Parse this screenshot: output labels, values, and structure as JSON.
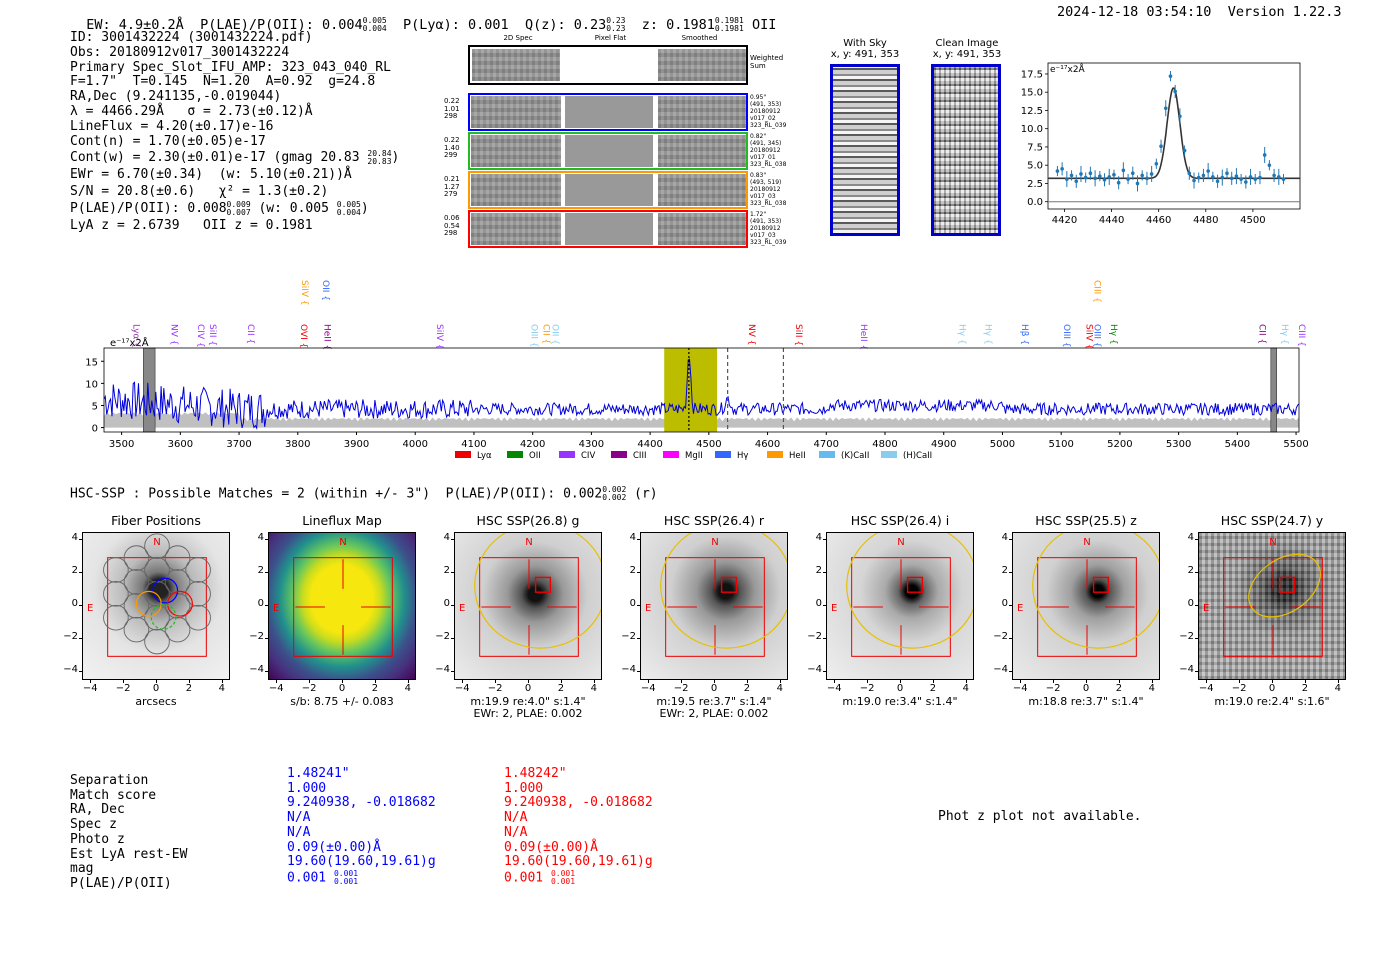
{
  "header": {
    "ew": "EW: 4.9±0.2Å",
    "plae_label": "P(LAE)/P(OII): 0.004",
    "plae_hi": "0.005",
    "plae_lo": "0.004",
    "plya": "P(Lyα): 0.001",
    "qz_label": "Q(z): 0.23",
    "qz_hi": "0.23",
    "qz_lo": "0.23",
    "z_label": "z: 0.1981",
    "z_hi": "0.1981",
    "z_lo": "0.1981",
    "z_line": "OII",
    "timestamp": "2024-12-18 03:54:10",
    "version": "Version 1.22.3"
  },
  "info": {
    "id": "ID: 3001432224 (3001432224.pdf)",
    "obs": "Obs: 20180912v017_3001432224",
    "primary": "Primary Spec_Slot_IFU_AMP: 323_043_040_RL",
    "fline": "F=1.7\"  T=0.145  N=1.20  A=0.92  g=24.8",
    "radec": "RA,Dec (9.241135,-0.019044)",
    "lambda": "λ = 4466.29Å   σ = 2.73(±0.12)Å",
    "lineflux": "LineFlux = 4.20(±0.17)e-16",
    "contn": "Cont(n) = 1.70(±0.05)e-17",
    "contw": "Cont(w) = 2.30(±0.01)e-17 (gmag 20.83",
    "contw_hi": "20.84",
    "contw_lo": "20.83",
    "ewr": "EWr = 6.70(±0.34)  (w: 5.10(±0.21))Å",
    "sn": "S/N = 20.8(±0.6)   χ² = 1.3(±0.2)",
    "plae": "P(LAE)/P(OII): 0.008",
    "plae_hi": "0.009",
    "plae_lo": "0.007",
    "plae_w": "(w: 0.005",
    "plae_w_hi": "0.005",
    "plae_w_lo": "0.004",
    "lyaz": "LyA z = 2.6739   OII z = 0.1981"
  },
  "cutouts": {
    "col_2d": "2D Spec",
    "col_flat": "Pixel Flat",
    "col_smooth": "Smoothed",
    "weighted_sum": "Weighted Sum",
    "rows": [
      {
        "l1": "0.22",
        "l2": "1.01",
        "l3": "298",
        "r": [
          "0.95\"",
          "(491, 353)",
          "20180912",
          "v017_02",
          "323_RL_039"
        ],
        "color": "#0000ff"
      },
      {
        "l1": "0.22",
        "l2": "1.40",
        "l3": "299",
        "r": [
          "0.82\"",
          "(491, 345)",
          "20180912",
          "v017_01",
          "323_RL_038"
        ],
        "color": "#22bb22"
      },
      {
        "l1": "0.21",
        "l2": "1.27",
        "l3": "279",
        "r": [
          "0.83\"",
          "(493, 519)",
          "20180912",
          "v017_03",
          "323_RL_038"
        ],
        "color": "#ff9900"
      },
      {
        "l1": "0.06",
        "l2": "0.54",
        "l3": "298",
        "r": [
          "1.72\"",
          "(491, 353)",
          "20180912",
          "v017_03",
          "323_RL_039"
        ],
        "color": "#ff0000"
      }
    ]
  },
  "sky": {
    "with_sky": "With Sky",
    "with_sky_xy": "x, y: 491, 353",
    "clean": "Clean Image",
    "clean_xy": "x, y: 491, 353"
  },
  "zoom_chart": {
    "unit": "e⁻¹⁷x2Å",
    "x_ticks": [
      "4420",
      "4440",
      "4460",
      "4480",
      "4500"
    ],
    "y_ticks": [
      "0.0",
      "2.5",
      "5.0",
      "7.5",
      "10.0",
      "12.5",
      "15.0",
      "17.5"
    ]
  },
  "chart_data": [
    {
      "type": "scatter",
      "title": "",
      "xlabel": "",
      "ylabel": "e-17x2Å",
      "xlim": [
        4413,
        4520
      ],
      "ylim": [
        -1,
        19
      ],
      "fit_center": 4466.29,
      "fit_sigma": 2.73,
      "fit_amp": 12.4,
      "fit_base": 3.2,
      "x": [
        4417,
        4419,
        4421,
        4423,
        4425,
        4427,
        4429,
        4431,
        4433,
        4435,
        4437,
        4439,
        4441,
        4443,
        4445,
        4447,
        4449,
        4451,
        4453,
        4455,
        4457,
        4459,
        4461,
        4463,
        4465,
        4467,
        4469,
        4471,
        4473,
        4475,
        4477,
        4479,
        4481,
        4483,
        4485,
        4487,
        4489,
        4491,
        4493,
        4495,
        4497,
        4499,
        4501,
        4503,
        4505,
        4507,
        4509,
        4511,
        4513
      ],
      "y": [
        4.2,
        4.5,
        3.1,
        3.6,
        2.8,
        3.8,
        3.3,
        3.9,
        3.2,
        3.5,
        3.0,
        3.4,
        3.7,
        2.6,
        4.3,
        3.1,
        3.9,
        2.5,
        3.6,
        3.2,
        3.8,
        5.2,
        7.6,
        12.8,
        17.2,
        15.1,
        11.7,
        7.0,
        3.9,
        2.9,
        3.3,
        3.6,
        4.2,
        3.4,
        2.8,
        3.3,
        3.9,
        3.2,
        3.5,
        3.1,
        2.7,
        3.4,
        3.1,
        3.3,
        6.4,
        5.0,
        3.6,
        3.4,
        3.1
      ]
    },
    {
      "type": "line",
      "title": "",
      "ylabel": "e-17x2Å",
      "xlim": [
        3470,
        5505
      ],
      "ylim": [
        -1,
        18
      ],
      "x_ticks": [
        3500,
        3600,
        3700,
        3800,
        3900,
        4000,
        4100,
        4200,
        4300,
        4400,
        4500,
        4600,
        4700,
        4800,
        4900,
        5000,
        5100,
        5200,
        5300,
        5400,
        5500
      ],
      "y_ticks": [
        0,
        5,
        10,
        15
      ],
      "highlight_range": [
        4424,
        4514
      ],
      "dashed_lines": [
        4466,
        4532,
        4627
      ],
      "masked_ranges": [
        [
          3537,
          3557
        ],
        [
          5457,
          5467
        ]
      ],
      "legend": [
        "Lyα",
        "OII",
        "CIV",
        "CIII",
        "MgII",
        "Hγ",
        "HeII",
        "(K)CaII",
        "(H)CaII"
      ],
      "legend_colors": [
        "#ee0000",
        "#008800",
        "#9933ff",
        "#8b008b",
        "#ff00ff",
        "#3366ff",
        "#ff9900",
        "#66bbee",
        "#88ccee"
      ],
      "line_labels": [
        {
          "name": "Lyα",
          "w": 3515,
          "color": "#9933aa",
          "level": 0
        },
        {
          "name": "NV",
          "w": 3580,
          "color": "#9933ff",
          "level": 0
        },
        {
          "name": "CIV",
          "w": 3625,
          "color": "#9933ff",
          "level": 0
        },
        {
          "name": "SiII",
          "w": 3645,
          "color": "#9933ff",
          "level": 0
        },
        {
          "name": "CII",
          "w": 3710,
          "color": "#9933ff",
          "level": 0
        },
        {
          "name": "SiIV",
          "w": 3802,
          "color": "#ff9900",
          "level": 1
        },
        {
          "name": "OII",
          "w": 3838,
          "color": "#3366ff",
          "level": 1
        },
        {
          "name": "OVI",
          "w": 3800,
          "color": "#ee0000",
          "level": 0
        },
        {
          "name": "HeII",
          "w": 3840,
          "color": "#8b008b",
          "level": 0
        },
        {
          "name": "SiIV",
          "w": 4032,
          "color": "#9933ff",
          "level": 0
        },
        {
          "name": "OIII",
          "w": 4193,
          "color": "#88ccee",
          "level": 0
        },
        {
          "name": "CII",
          "w": 4213,
          "color": "#ff9900",
          "level": 0
        },
        {
          "name": "OII",
          "w": 4229,
          "color": "#88ccee",
          "level": 0
        },
        {
          "name": "NV",
          "w": 4563,
          "color": "#ee0000",
          "level": 0
        },
        {
          "name": "SiII",
          "w": 4643,
          "color": "#ee0000",
          "level": 0
        },
        {
          "name": "HeII",
          "w": 4754,
          "color": "#9933ff",
          "level": 0
        },
        {
          "name": "Hγ",
          "w": 4922,
          "color": "#88ccee",
          "level": 0
        },
        {
          "name": "Hγ",
          "w": 4966,
          "color": "#88ccee",
          "level": 0
        },
        {
          "name": "Hβ",
          "w": 5028,
          "color": "#3366ff",
          "level": 0
        },
        {
          "name": "OIII",
          "w": 5100,
          "color": "#3366ff",
          "level": 0
        },
        {
          "name": "SiIV",
          "w": 5138,
          "color": "#ee0000",
          "level": 0
        },
        {
          "name": "OIII",
          "w": 5152,
          "color": "#3366ff",
          "level": 0
        },
        {
          "name": "CIII",
          "w": 5152,
          "color": "#ff9900",
          "level": 1
        },
        {
          "name": "Hγ",
          "w": 5180,
          "color": "#008800",
          "level": 0
        },
        {
          "name": "CII",
          "w": 5433,
          "color": "#8b008b",
          "level": 0
        },
        {
          "name": "Hγ",
          "w": 5471,
          "color": "#88ccee",
          "level": 0
        },
        {
          "name": "CIII",
          "w": 5500,
          "color": "#9933ff",
          "level": 0
        }
      ]
    }
  ],
  "spectrum_unit": "e⁻¹⁷x2Å",
  "matches_header": "HSC-SSP : Possible Matches = 2 (within +/- 3\")  P(LAE)/P(OII): 0.002",
  "matches_hi": "0.002",
  "matches_lo": "0.002",
  "matches_band": "(r)",
  "panels": {
    "axis_ticks": [
      "−4",
      "−2",
      "0",
      "2",
      "4"
    ],
    "n_label": "N",
    "e_label": "E",
    "items": [
      {
        "title": "Fiber Positions",
        "cap1": "arcsecs",
        "cap2": ""
      },
      {
        "title": "Lineflux Map",
        "cap1": "s/b: 8.75 +/- 0.083",
        "cap2": ""
      },
      {
        "title": "HSC SSP(26.8) g",
        "cap1": "m:19.9  re:4.0\"  s:1.4\"",
        "cap2": "EWr: 2, PLAE: 0.002"
      },
      {
        "title": "HSC SSP(26.4) r",
        "cap1": "m:19.5  re:3.7\"  s:1.4\"",
        "cap2": "EWr: 2, PLAE: 0.002"
      },
      {
        "title": "HSC SSP(26.4) i",
        "cap1": "m:19.0  re:3.4\"  s:1.4\"",
        "cap2": ""
      },
      {
        "title": "HSC SSP(25.5) z",
        "cap1": "m:18.8  re:3.7\"  s:1.4\"",
        "cap2": ""
      },
      {
        "title": "HSC SSP(24.7) y",
        "cap1": "m:19.0  re:2.4\"  s:1.6\"",
        "cap2": ""
      }
    ]
  },
  "table": {
    "labels": [
      "Separation",
      "Match score",
      "RA, Dec",
      "Spec z",
      "Photo z",
      "Est LyA rest-EW",
      "mag",
      "P(LAE)/P(OII)"
    ],
    "blue": {
      "values": [
        "1.48241\"",
        "1.000",
        "9.240938, -0.018682",
        "N/A",
        "N/A",
        "0.09(±0.00)Å",
        "19.60(19.60,19.61)g"
      ],
      "plae": "0.001",
      "plae_hi": "0.001",
      "plae_lo": "0.001",
      "color": "#0000ff"
    },
    "red": {
      "values": [
        "1.48242\"",
        "1.000",
        "9.240938, -0.018682",
        "N/A",
        "N/A",
        "0.09(±0.00)Å",
        "19.60(19.60,19.61)g"
      ],
      "plae": "0.001",
      "plae_hi": "0.001",
      "plae_lo": "0.001",
      "color": "#ff0000"
    },
    "photz_msg": "Phot z plot not available."
  }
}
